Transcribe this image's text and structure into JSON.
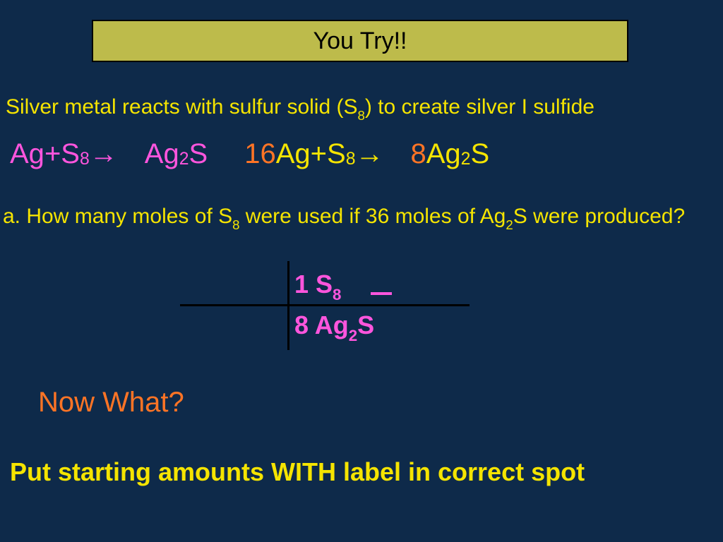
{
  "colors": {
    "background": "#0e2a4a",
    "banner_bg": "#bdbb4b",
    "banner_border": "#000000",
    "yellow": "#f5e400",
    "pink": "#ff55dd",
    "orange": "#ff7425",
    "white": "#ffffff",
    "cross_line": "#000000"
  },
  "typography": {
    "banner_fontsize": 34,
    "body_fontsize": 30,
    "equation_fontsize": 40,
    "ratio_fontsize": 36,
    "instruction_fontsize": 36
  },
  "banner": {
    "text": "You Try!!"
  },
  "problem_line": {
    "prefix": "Silver metal reacts with sulfur solid (S",
    "sub1": "8",
    "suffix": ") to create silver I sulfide"
  },
  "equation": {
    "left": {
      "r1": "Ag",
      "plus": " + ",
      "r2": "S",
      "r2_sub": "8",
      "arrow": " → ",
      "p1": "Ag",
      "p1_sub": "2",
      "p2": "S"
    },
    "right": {
      "c1": "16",
      "r1": "Ag",
      "plus": " + ",
      "r2": "S",
      "r2_sub": "8",
      "arrow": " → ",
      "c2": "8",
      "p1": "Ag",
      "p1_sub": "2",
      "p2": "S"
    }
  },
  "question": {
    "t1": "a. How many moles of S",
    "s1": "8",
    "t2": " were used if 36 moles of Ag",
    "s2": "2",
    "t3": "S were produced?"
  },
  "ratio": {
    "num_coef": "1",
    "num_species": " S",
    "num_sub": "8",
    "den_coef": "8",
    "den_species": " Ag",
    "den_sub": "2",
    "den_tail": "S"
  },
  "now_what": "Now What?",
  "instruction": "Put starting amounts WITH label in correct spot"
}
